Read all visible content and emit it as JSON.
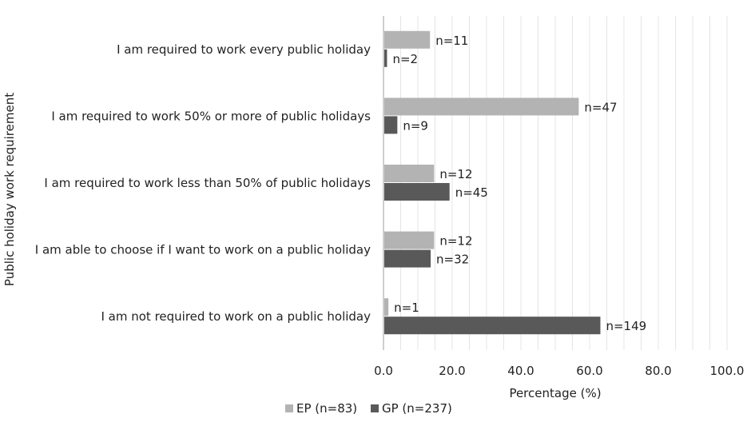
{
  "chart_data": {
    "type": "bar",
    "orientation": "horizontal",
    "categories": [
      "I am required to work every public holiday",
      "I am required to work 50% or more of public holidays",
      "I am required to work less than 50% of public holidays",
      "I am able to choose if I want to work on a public holiday",
      "I am not required to work on a public holiday"
    ],
    "series": [
      {
        "name": "EP (n=83)",
        "color": "#b3b3b3",
        "values": [
          13.3,
          56.6,
          14.5,
          14.5,
          1.2
        ],
        "labels": [
          "n=11",
          "n=47",
          "n=12",
          "n=12",
          "n=1"
        ]
      },
      {
        "name": "GP (n=237)",
        "color": "#595959",
        "values": [
          0.8,
          3.8,
          19.0,
          13.5,
          62.9
        ],
        "labels": [
          "n=2",
          "n=9",
          "n=45",
          "n=32",
          "n=149"
        ]
      }
    ],
    "xlabel": "Percentage (%)",
    "ylabel": "Public holiday work requirement",
    "xlim": [
      0,
      100
    ],
    "xticks": [
      "0.0",
      "20.0",
      "40.0",
      "60.0",
      "80.0",
      "100.0"
    ],
    "grid": true,
    "legend_position": "bottom"
  }
}
